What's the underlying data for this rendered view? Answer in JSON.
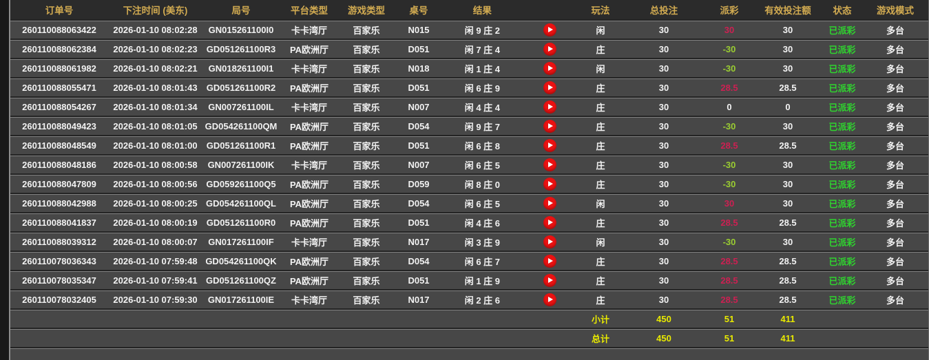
{
  "colors": {
    "header_text": "#d2ab51",
    "row_text": "#f2f2f2",
    "payout_win": "#cc2052",
    "payout_loss": "#9acd32",
    "payout_push": "#f2f2f2",
    "status_paid": "#2fd42f",
    "totals_text": "#e9ea00",
    "play_button": "#ea1212"
  },
  "table": {
    "columns": [
      {
        "key": "order",
        "label": "订单号"
      },
      {
        "key": "time",
        "label": "下注时间 (美东)"
      },
      {
        "key": "round",
        "label": "局号"
      },
      {
        "key": "platform",
        "label": "平台类型"
      },
      {
        "key": "game_type",
        "label": "游戏类型"
      },
      {
        "key": "table_no",
        "label": "桌号"
      },
      {
        "key": "result",
        "label": "结果"
      },
      {
        "key": "play_type",
        "label": "玩法"
      },
      {
        "key": "total_bet",
        "label": "总投注"
      },
      {
        "key": "payout",
        "label": "派彩"
      },
      {
        "key": "valid_bet",
        "label": "有效投注额"
      },
      {
        "key": "status",
        "label": "状态"
      },
      {
        "key": "mode",
        "label": "游戏模式"
      }
    ],
    "rows": [
      {
        "order": "260110088063422",
        "time": "2026-01-10 08:02:28",
        "round": "GN015261100I0",
        "platform": "卡卡湾厅",
        "game_type": "百家乐",
        "table_no": "N015",
        "result": "闲 9 庄 2",
        "play_type": "闲",
        "total_bet": "30",
        "payout": "30",
        "payout_state": "win",
        "valid_bet": "30",
        "status": "已派彩",
        "mode": "多台"
      },
      {
        "order": "260110088062384",
        "time": "2026-01-10 08:02:23",
        "round": "GD051261100R3",
        "platform": "PA欧洲厅",
        "game_type": "百家乐",
        "table_no": "D051",
        "result": "闲 7 庄 4",
        "play_type": "庄",
        "total_bet": "30",
        "payout": "-30",
        "payout_state": "loss",
        "valid_bet": "30",
        "status": "已派彩",
        "mode": "多台"
      },
      {
        "order": "260110088061982",
        "time": "2026-01-10 08:02:21",
        "round": "GN018261100I1",
        "platform": "卡卡湾厅",
        "game_type": "百家乐",
        "table_no": "N018",
        "result": "闲 1 庄 4",
        "play_type": "闲",
        "total_bet": "30",
        "payout": "-30",
        "payout_state": "loss",
        "valid_bet": "30",
        "status": "已派彩",
        "mode": "多台"
      },
      {
        "order": "260110088055471",
        "time": "2026-01-10 08:01:43",
        "round": "GD051261100R2",
        "platform": "PA欧洲厅",
        "game_type": "百家乐",
        "table_no": "D051",
        "result": "闲 6 庄 9",
        "play_type": "庄",
        "total_bet": "30",
        "payout": "28.5",
        "payout_state": "win",
        "valid_bet": "28.5",
        "status": "已派彩",
        "mode": "多台"
      },
      {
        "order": "260110088054267",
        "time": "2026-01-10 08:01:34",
        "round": "GN007261100IL",
        "platform": "卡卡湾厅",
        "game_type": "百家乐",
        "table_no": "N007",
        "result": "闲 4 庄 4",
        "play_type": "庄",
        "total_bet": "30",
        "payout": "0",
        "payout_state": "push",
        "valid_bet": "0",
        "status": "已派彩",
        "mode": "多台"
      },
      {
        "order": "260110088049423",
        "time": "2026-01-10 08:01:05",
        "round": "GD054261100QM",
        "platform": "PA欧洲厅",
        "game_type": "百家乐",
        "table_no": "D054",
        "result": "闲 9 庄 7",
        "play_type": "庄",
        "total_bet": "30",
        "payout": "-30",
        "payout_state": "loss",
        "valid_bet": "30",
        "status": "已派彩",
        "mode": "多台"
      },
      {
        "order": "260110088048549",
        "time": "2026-01-10 08:01:00",
        "round": "GD051261100R1",
        "platform": "PA欧洲厅",
        "game_type": "百家乐",
        "table_no": "D051",
        "result": "闲 6 庄 8",
        "play_type": "庄",
        "total_bet": "30",
        "payout": "28.5",
        "payout_state": "win",
        "valid_bet": "28.5",
        "status": "已派彩",
        "mode": "多台"
      },
      {
        "order": "260110088048186",
        "time": "2026-01-10 08:00:58",
        "round": "GN007261100IK",
        "platform": "卡卡湾厅",
        "game_type": "百家乐",
        "table_no": "N007",
        "result": "闲 6 庄 5",
        "play_type": "庄",
        "total_bet": "30",
        "payout": "-30",
        "payout_state": "loss",
        "valid_bet": "30",
        "status": "已派彩",
        "mode": "多台"
      },
      {
        "order": "260110088047809",
        "time": "2026-01-10 08:00:56",
        "round": "GD059261100Q5",
        "platform": "PA欧洲厅",
        "game_type": "百家乐",
        "table_no": "D059",
        "result": "闲 8 庄 0",
        "play_type": "庄",
        "total_bet": "30",
        "payout": "-30",
        "payout_state": "loss",
        "valid_bet": "30",
        "status": "已派彩",
        "mode": "多台"
      },
      {
        "order": "260110088042988",
        "time": "2026-01-10 08:00:25",
        "round": "GD054261100QL",
        "platform": "PA欧洲厅",
        "game_type": "百家乐",
        "table_no": "D054",
        "result": "闲 6 庄 5",
        "play_type": "闲",
        "total_bet": "30",
        "payout": "30",
        "payout_state": "win",
        "valid_bet": "30",
        "status": "已派彩",
        "mode": "多台"
      },
      {
        "order": "260110088041837",
        "time": "2026-01-10 08:00:19",
        "round": "GD051261100R0",
        "platform": "PA欧洲厅",
        "game_type": "百家乐",
        "table_no": "D051",
        "result": "闲 4 庄 6",
        "play_type": "庄",
        "total_bet": "30",
        "payout": "28.5",
        "payout_state": "win",
        "valid_bet": "28.5",
        "status": "已派彩",
        "mode": "多台"
      },
      {
        "order": "260110088039312",
        "time": "2026-01-10 08:00:07",
        "round": "GN017261100IF",
        "platform": "卡卡湾厅",
        "game_type": "百家乐",
        "table_no": "N017",
        "result": "闲 3 庄 9",
        "play_type": "闲",
        "total_bet": "30",
        "payout": "-30",
        "payout_state": "loss",
        "valid_bet": "30",
        "status": "已派彩",
        "mode": "多台"
      },
      {
        "order": "260110078036343",
        "time": "2026-01-10 07:59:48",
        "round": "GD054261100QK",
        "platform": "PA欧洲厅",
        "game_type": "百家乐",
        "table_no": "D054",
        "result": "闲 6 庄 7",
        "play_type": "庄",
        "total_bet": "30",
        "payout": "28.5",
        "payout_state": "win",
        "valid_bet": "28.5",
        "status": "已派彩",
        "mode": "多台"
      },
      {
        "order": "260110078035347",
        "time": "2026-01-10 07:59:41",
        "round": "GD051261100QZ",
        "platform": "PA欧洲厅",
        "game_type": "百家乐",
        "table_no": "D051",
        "result": "闲 1 庄 9",
        "play_type": "庄",
        "total_bet": "30",
        "payout": "28.5",
        "payout_state": "win",
        "valid_bet": "28.5",
        "status": "已派彩",
        "mode": "多台"
      },
      {
        "order": "260110078032405",
        "time": "2026-01-10 07:59:30",
        "round": "GN017261100IE",
        "platform": "卡卡湾厅",
        "game_type": "百家乐",
        "table_no": "N017",
        "result": "闲 2 庄 6",
        "play_type": "庄",
        "total_bet": "30",
        "payout": "28.5",
        "payout_state": "win",
        "valid_bet": "28.5",
        "status": "已派彩",
        "mode": "多台"
      }
    ],
    "subtotal": {
      "label": "小计",
      "total_bet": "450",
      "payout": "51",
      "valid_bet": "411"
    },
    "grand_total": {
      "label": "总计",
      "total_bet": "450",
      "payout": "51",
      "valid_bet": "411"
    }
  }
}
